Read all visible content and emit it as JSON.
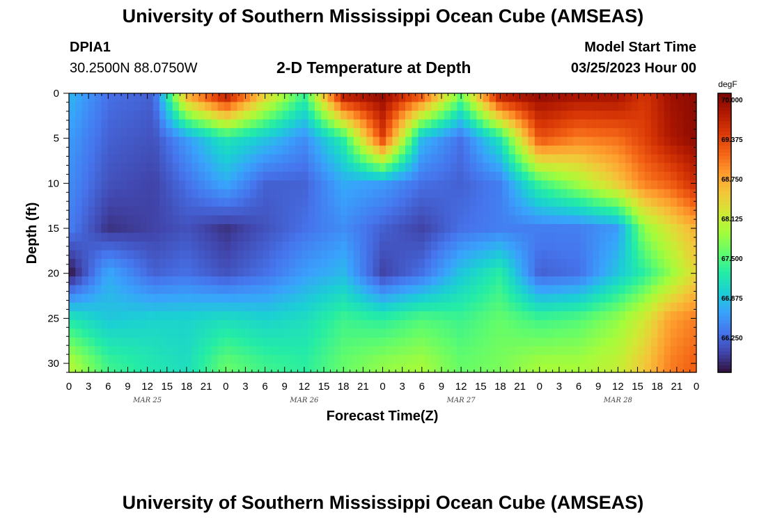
{
  "page": {
    "title_top": "University of Southern Mississippi Ocean Cube (AMSEAS)",
    "title_bottom": "University of Southern Mississippi Ocean Cube (AMSEAS)",
    "station_id": "DPIA1",
    "station_coords": "30.2500N  88.0750W",
    "model_start_label": "Model Start Time",
    "model_start_value": "03/25/2023 Hour 00"
  },
  "chart_data": {
    "type": "heatmap",
    "title": "2-D Temperature at Depth",
    "xlabel": "Forecast Time(Z)",
    "ylabel": "Depth (ft)",
    "x_tick_labels": [
      "0",
      "3",
      "6",
      "9",
      "12",
      "15",
      "18",
      "21",
      "0",
      "3",
      "6",
      "9",
      "12",
      "15",
      "18",
      "21",
      "0",
      "3",
      "6",
      "9",
      "12",
      "15",
      "18",
      "21",
      "0",
      "3",
      "6",
      "9",
      "12",
      "15",
      "18",
      "21",
      "0"
    ],
    "date_labels": [
      "MAR 25",
      "MAR 26",
      "MAR 27",
      "MAR 28"
    ],
    "x_range_hours": [
      0,
      96
    ],
    "y_ticks": [
      0,
      5,
      10,
      15,
      20,
      25,
      30
    ],
    "y_range_ft": [
      0,
      31
    ],
    "colorbar": {
      "unit": "degF",
      "ticks": [
        "70.000",
        "69.375",
        "68.750",
        "68.125",
        "67.500",
        "66.875",
        "66.250"
      ],
      "min": 65.7,
      "max": 70.1,
      "colors": [
        "#30123b",
        "#4145ab",
        "#4675ed",
        "#39a2fc",
        "#1bcfd4",
        "#24eca6",
        "#61fc6c",
        "#a4fc3b",
        "#d1e834",
        "#f3c63a",
        "#fe9b2d",
        "#f36315",
        "#d93806",
        "#b11901",
        "#7a0403"
      ]
    },
    "temperature_degF_samples": {
      "description": "Estimated temperature (degF) at depth (ft) for forecast hours",
      "hours": [
        0,
        6,
        13,
        18,
        24,
        30,
        36,
        42,
        48,
        54,
        60,
        66,
        72,
        78,
        84,
        88,
        92,
        96
      ],
      "depth_ft": [
        0,
        5,
        10,
        15,
        20,
        25,
        30
      ],
      "values": [
        [
          66.8,
          66.3,
          66.2,
          68.8,
          69.9,
          68.5,
          67.4,
          69.9,
          70.0,
          69.4,
          67.7,
          69.9,
          70.0,
          69.9,
          69.9,
          69.5,
          69.9,
          70.0
        ],
        [
          66.6,
          66.2,
          66.1,
          66.6,
          67.2,
          66.9,
          66.5,
          67.3,
          69.4,
          66.8,
          66.3,
          67.2,
          69.3,
          69.0,
          69.1,
          69.4,
          69.8,
          70.0
        ],
        [
          66.5,
          66.1,
          66.0,
          66.3,
          66.7,
          66.2,
          66.2,
          66.7,
          66.6,
          66.3,
          66.2,
          66.4,
          67.4,
          67.9,
          68.5,
          69.0,
          69.2,
          69.6
        ],
        [
          66.4,
          65.9,
          66.0,
          66.1,
          65.9,
          66.1,
          66.3,
          66.5,
          66.2,
          66.0,
          66.3,
          66.4,
          66.4,
          66.4,
          66.6,
          67.8,
          68.3,
          68.7
        ],
        [
          65.7,
          66.7,
          66.2,
          66.3,
          66.1,
          66.3,
          66.6,
          66.8,
          66.0,
          66.3,
          66.9,
          67.3,
          66.2,
          66.3,
          66.9,
          67.3,
          67.8,
          68.4
        ],
        [
          67.2,
          66.9,
          67.0,
          67.0,
          67.1,
          67.0,
          67.1,
          67.4,
          67.3,
          67.5,
          67.4,
          67.6,
          67.4,
          67.5,
          67.8,
          68.2,
          68.8,
          69.0
        ],
        [
          68.0,
          67.4,
          67.2,
          67.1,
          67.6,
          67.4,
          67.3,
          67.6,
          67.8,
          67.9,
          67.6,
          67.7,
          67.9,
          67.9,
          68.1,
          68.5,
          69.0,
          69.2
        ]
      ]
    }
  }
}
